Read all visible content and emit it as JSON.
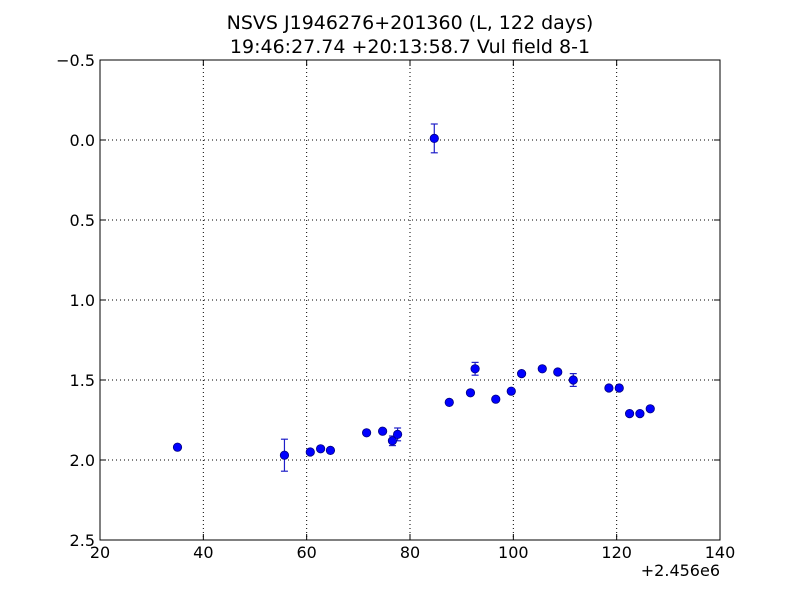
{
  "chart_data": {
    "type": "scatter",
    "title": "NSVS J1946276+201360 (L, 122 days)",
    "subtitle": "19:46:27.74 +20:13:58.7 Vul field 8-1",
    "xlabel": "",
    "ylabel": "",
    "x_offset_label": "+2.456e6",
    "xlim": [
      20,
      140
    ],
    "ylim": [
      2.5,
      -0.5
    ],
    "y_inverted": true,
    "grid": true,
    "x_ticks": [
      20,
      40,
      60,
      80,
      100,
      120,
      140
    ],
    "x_tick_labels": [
      "20",
      "40",
      "60",
      "80",
      "100",
      "120",
      "140"
    ],
    "y_ticks": [
      -0.5,
      0.0,
      0.5,
      1.0,
      1.5,
      2.0,
      2.5
    ],
    "y_tick_labels": [
      "−0.5",
      "0.0",
      "0.5",
      "1.0",
      "1.5",
      "2.0",
      "2.5"
    ],
    "point_color": "#0000ff",
    "errorbar_color": "#2020c8",
    "series": [
      {
        "points": [
          {
            "x": 35.0,
            "y": 1.92,
            "err": 0.0
          },
          {
            "x": 55.7,
            "y": 1.97,
            "err": 0.1
          },
          {
            "x": 60.7,
            "y": 1.95,
            "err": 0.0
          },
          {
            "x": 62.7,
            "y": 1.93,
            "err": 0.0
          },
          {
            "x": 64.6,
            "y": 1.94,
            "err": 0.0
          },
          {
            "x": 71.6,
            "y": 1.83,
            "err": 0.0
          },
          {
            "x": 74.7,
            "y": 1.82,
            "err": 0.0
          },
          {
            "x": 76.6,
            "y": 1.88,
            "err": 0.03
          },
          {
            "x": 77.6,
            "y": 1.84,
            "err": 0.04
          },
          {
            "x": 84.7,
            "y": -0.01,
            "err": 0.09
          },
          {
            "x": 87.6,
            "y": 1.64,
            "err": 0.0
          },
          {
            "x": 91.7,
            "y": 1.58,
            "err": 0.0
          },
          {
            "x": 92.6,
            "y": 1.43,
            "err": 0.04
          },
          {
            "x": 96.6,
            "y": 1.62,
            "err": 0.0
          },
          {
            "x": 99.6,
            "y": 1.57,
            "err": 0.0
          },
          {
            "x": 101.6,
            "y": 1.46,
            "err": 0.0
          },
          {
            "x": 105.6,
            "y": 1.43,
            "err": 0.0
          },
          {
            "x": 108.6,
            "y": 1.45,
            "err": 0.0
          },
          {
            "x": 111.6,
            "y": 1.5,
            "err": 0.04
          },
          {
            "x": 118.5,
            "y": 1.55,
            "err": 0.0
          },
          {
            "x": 120.5,
            "y": 1.55,
            "err": 0.0
          },
          {
            "x": 122.5,
            "y": 1.71,
            "err": 0.0
          },
          {
            "x": 124.5,
            "y": 1.71,
            "err": 0.0
          },
          {
            "x": 126.5,
            "y": 1.68,
            "err": 0.0
          }
        ]
      }
    ]
  }
}
